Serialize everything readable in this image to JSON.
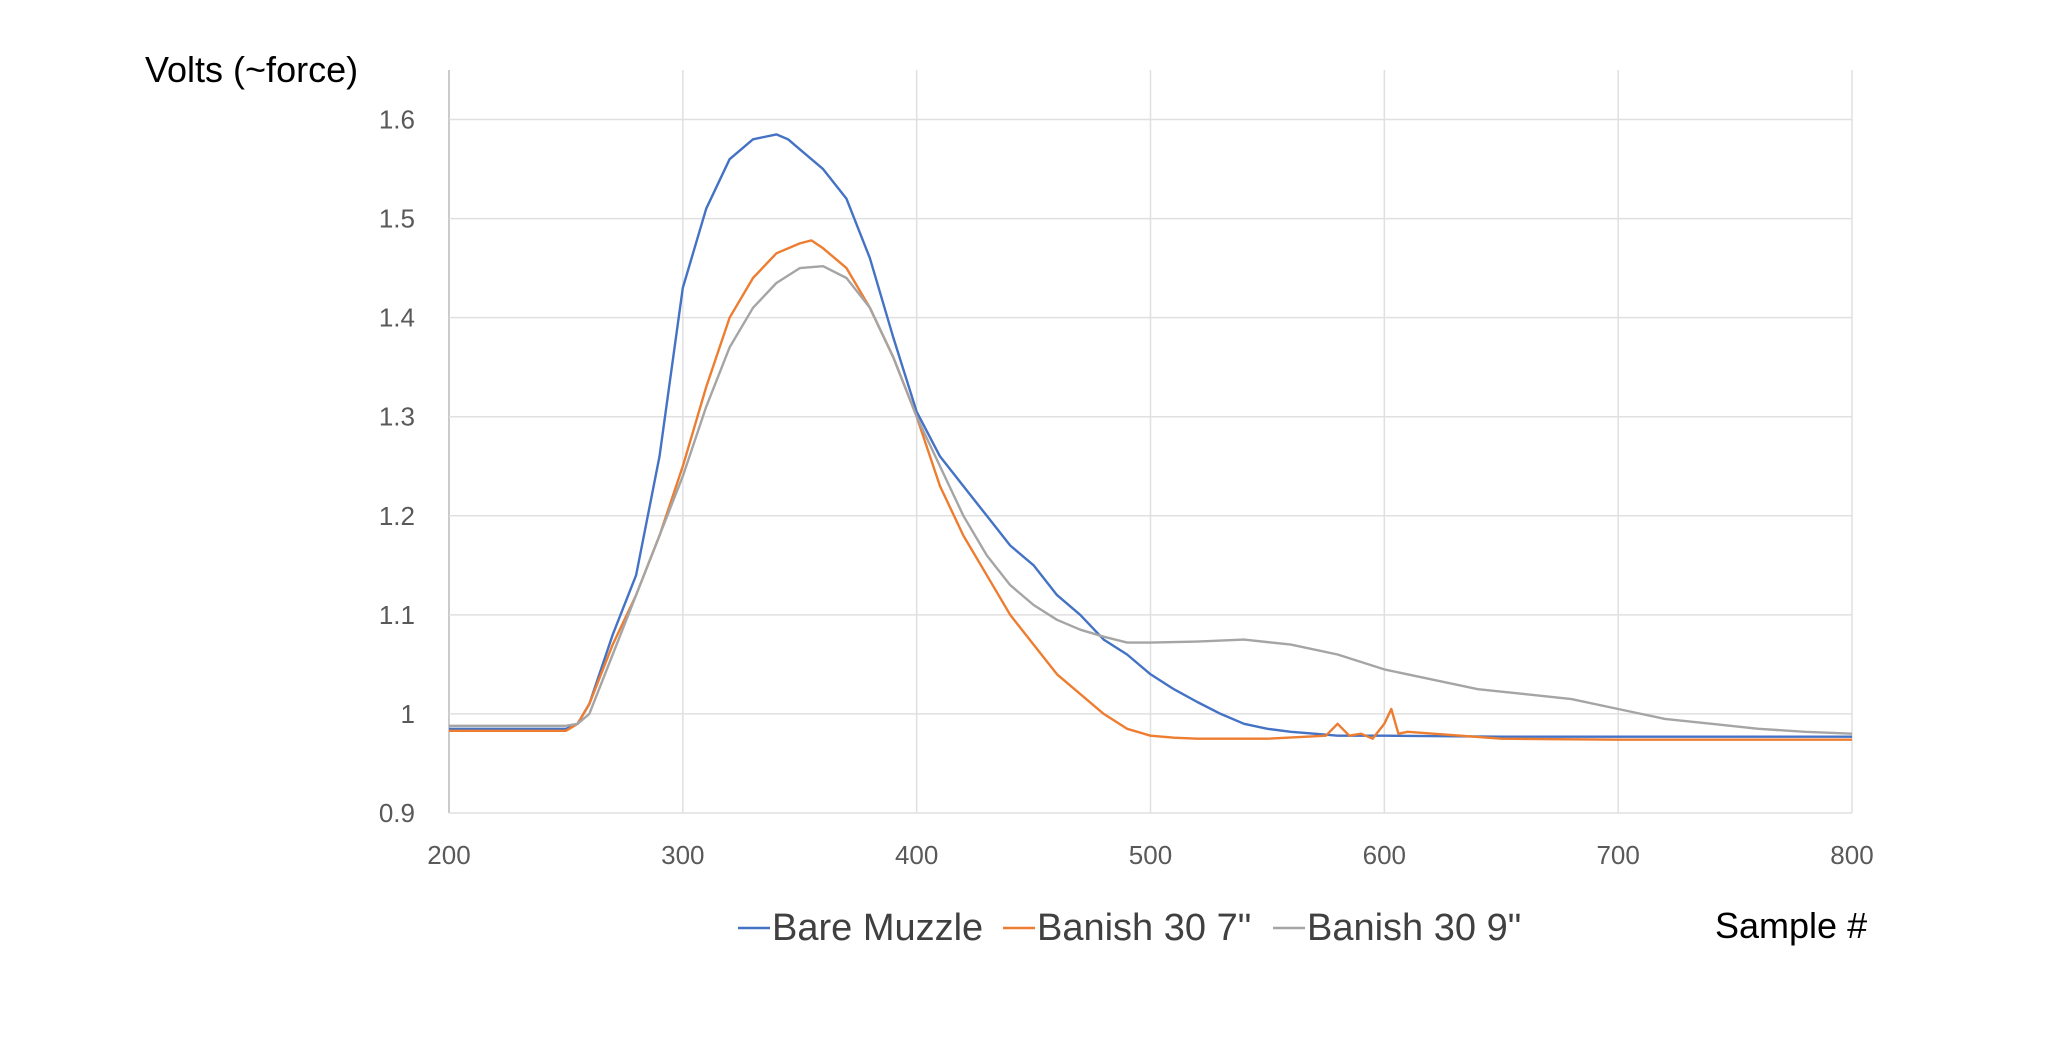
{
  "chart_data": {
    "type": "line",
    "ylabel": "Volts (~force)",
    "xlabel": "Sample #",
    "xlim": [
      200,
      800
    ],
    "ylim": [
      0.9,
      1.65
    ],
    "xticks": [
      200,
      300,
      400,
      500,
      600,
      700,
      800
    ],
    "yticks": [
      0.9,
      1,
      1.1,
      1.2,
      1.3,
      1.4,
      1.5,
      1.6
    ],
    "ytick_labels": [
      "0.9",
      "1",
      "1.1",
      "1.2",
      "1.3",
      "1.4",
      "1.5",
      "1.6"
    ],
    "grid": true,
    "legend_position": "bottom",
    "series": [
      {
        "name": "Bare Muzzle",
        "color": "#4472C4",
        "x": [
          200,
          250,
          255,
          260,
          270,
          280,
          290,
          300,
          310,
          320,
          330,
          340,
          345,
          350,
          360,
          370,
          380,
          390,
          400,
          410,
          420,
          430,
          440,
          450,
          460,
          470,
          480,
          490,
          500,
          510,
          520,
          530,
          540,
          550,
          560,
          570,
          580,
          600,
          650,
          700,
          750,
          800
        ],
        "y": [
          0.985,
          0.985,
          0.99,
          1.01,
          1.08,
          1.14,
          1.26,
          1.43,
          1.51,
          1.56,
          1.58,
          1.585,
          1.58,
          1.57,
          1.55,
          1.52,
          1.46,
          1.38,
          1.305,
          1.26,
          1.23,
          1.2,
          1.17,
          1.15,
          1.12,
          1.1,
          1.075,
          1.06,
          1.04,
          1.025,
          1.012,
          1.0,
          0.99,
          0.985,
          0.982,
          0.98,
          0.978,
          0.978,
          0.977,
          0.977,
          0.977,
          0.977
        ]
      },
      {
        "name": "Banish 30 7\"",
        "color": "#ED7D31",
        "x": [
          200,
          250,
          255,
          260,
          270,
          280,
          290,
          300,
          310,
          320,
          330,
          340,
          350,
          355,
          360,
          370,
          380,
          390,
          400,
          410,
          420,
          430,
          440,
          450,
          460,
          470,
          480,
          490,
          500,
          510,
          520,
          550,
          575,
          580,
          585,
          590,
          595,
          600,
          603,
          606,
          610,
          650,
          700,
          750,
          800
        ],
        "y": [
          0.983,
          0.983,
          0.99,
          1.01,
          1.07,
          1.12,
          1.18,
          1.25,
          1.33,
          1.4,
          1.44,
          1.465,
          1.475,
          1.478,
          1.47,
          1.45,
          1.41,
          1.36,
          1.3,
          1.23,
          1.18,
          1.14,
          1.1,
          1.07,
          1.04,
          1.02,
          1.0,
          0.985,
          0.978,
          0.976,
          0.975,
          0.975,
          0.978,
          0.99,
          0.978,
          0.98,
          0.975,
          0.99,
          1.005,
          0.98,
          0.982,
          0.975,
          0.974,
          0.974,
          0.974
        ]
      },
      {
        "name": "Banish 30 9\"",
        "color": "#A5A5A5",
        "x": [
          200,
          250,
          255,
          260,
          270,
          280,
          290,
          300,
          310,
          320,
          330,
          340,
          350,
          360,
          370,
          380,
          390,
          400,
          410,
          420,
          430,
          440,
          450,
          460,
          470,
          480,
          490,
          500,
          520,
          540,
          560,
          580,
          600,
          620,
          640,
          660,
          680,
          700,
          720,
          740,
          760,
          780,
          800
        ],
        "y": [
          0.988,
          0.988,
          0.99,
          1.0,
          1.06,
          1.12,
          1.18,
          1.24,
          1.31,
          1.37,
          1.41,
          1.435,
          1.45,
          1.452,
          1.44,
          1.41,
          1.36,
          1.3,
          1.25,
          1.2,
          1.16,
          1.13,
          1.11,
          1.095,
          1.085,
          1.078,
          1.072,
          1.072,
          1.073,
          1.075,
          1.07,
          1.06,
          1.045,
          1.035,
          1.025,
          1.02,
          1.015,
          1.005,
          0.995,
          0.99,
          0.985,
          0.982,
          0.98
        ]
      }
    ]
  }
}
